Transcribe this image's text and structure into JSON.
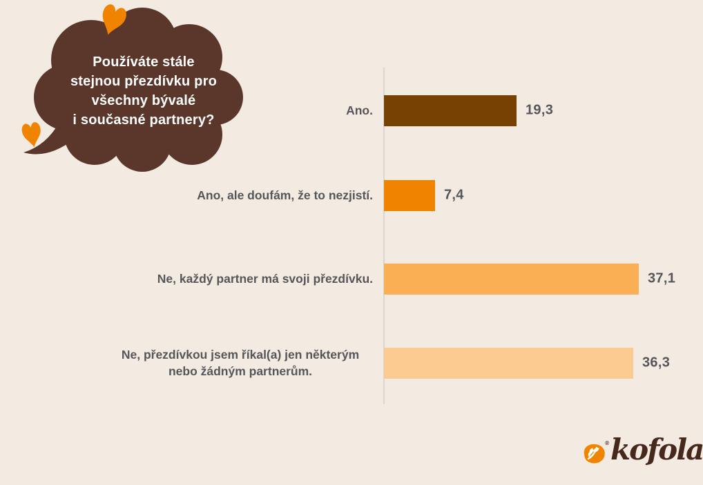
{
  "background_color": "#f3ebe1",
  "bubble": {
    "color": "#5a372a",
    "text_color": "#ffffff",
    "question": "Používáte stále stejnou přezdívku pro všechny bývalé i současné partnery?",
    "lines": [
      "Používáte stále",
      "stejnou přezdívku pro",
      "všechny bývalé",
      "i současné partnery?"
    ]
  },
  "decorations": {
    "heart_color": "#f08300"
  },
  "chart_data": {
    "type": "bar",
    "orientation": "horizontal",
    "title": "Používáte stále stejnou přezdívku pro všechny bývalé i současné partnery?",
    "categories": [
      "Ano.",
      "Ano, ale doufám, že to nezjistí.",
      "Ne, každý partner má svoji přezdívku.",
      "Ne, přezdívkou jsem říkal(a) jen některým nebo žádným partnerům."
    ],
    "values": [
      19.3,
      7.4,
      37.1,
      36.3
    ],
    "value_labels": [
      "19,3",
      "7,4",
      "37,1",
      "36,3"
    ],
    "bar_colors": [
      "#764103",
      "#f08300",
      "#fbaf55",
      "#fccb92"
    ],
    "label_color": "#55565a",
    "axis_color": "#d9d7d0",
    "xlabel": "",
    "ylabel": "",
    "xlim": [
      0,
      40
    ],
    "grid": false,
    "legend": false,
    "unit": "%"
  },
  "logo": {
    "brand": "kofola",
    "registered": "®",
    "badge_color": "#f08300",
    "leaf_color": "#ffffff",
    "text_color": "#46281c"
  }
}
